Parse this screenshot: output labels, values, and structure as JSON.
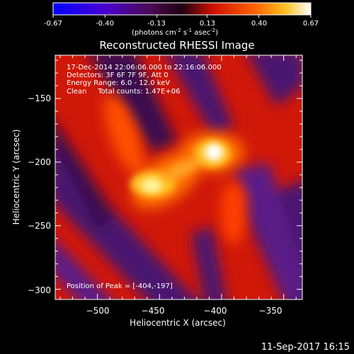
{
  "colorbar": {
    "ticks": [
      "-0.67",
      "-0.40",
      "-0.13",
      "0.13",
      "0.40",
      "0.67"
    ],
    "tick_values": [
      -0.67,
      -0.4,
      -0.13,
      0.13,
      0.4,
      0.67
    ],
    "unit_main": "(photons cm",
    "unit_sup1": "-2",
    "unit_mid": " s",
    "unit_sup2": "-1",
    "unit_end": " asec",
    "unit_sup3": "-2",
    "unit_close": ")"
  },
  "chart_data": {
    "type": "heatmap",
    "title": "Reconstructed RHESSI Image",
    "xlabel": "Heliocentric X (arcsec)",
    "ylabel": "Heliocentric Y (arcsec)",
    "xlim": [
      -534,
      -335
    ],
    "ylim": [
      -308,
      -116
    ],
    "x_ticks": [
      -500,
      -450,
      -400,
      -350
    ],
    "y_ticks": [
      -150,
      -200,
      -250,
      -300
    ],
    "x_tick_labels": [
      "−500",
      "−450",
      "−400",
      "−350"
    ],
    "y_tick_labels": [
      "−150",
      "−200",
      "−250",
      "−300"
    ],
    "color_range": [
      -0.67,
      0.67
    ],
    "colormap": [
      "#0000ff",
      "#6a00c0",
      "#3a0a3a",
      "#ff2000",
      "#ff8000",
      "#ffe040",
      "#ffffff"
    ],
    "peaks": [
      {
        "x": -404,
        "y": -197,
        "value": 0.67
      },
      {
        "x": -452,
        "y": -218,
        "value": 0.62
      }
    ],
    "annotations": [
      "17-Dec-2014 22:06:06.000 to 22:16:06.000",
      "Detectors: 3F 6F 7F 9F, Att 0",
      "Energy Range: 6.0 - 12.0 keV",
      "Clean     Total counts: 1.47E+06"
    ],
    "peak_label": "Position of Peak = [-404,-197]"
  },
  "footer_date": "11-Sep-2017 16:15"
}
